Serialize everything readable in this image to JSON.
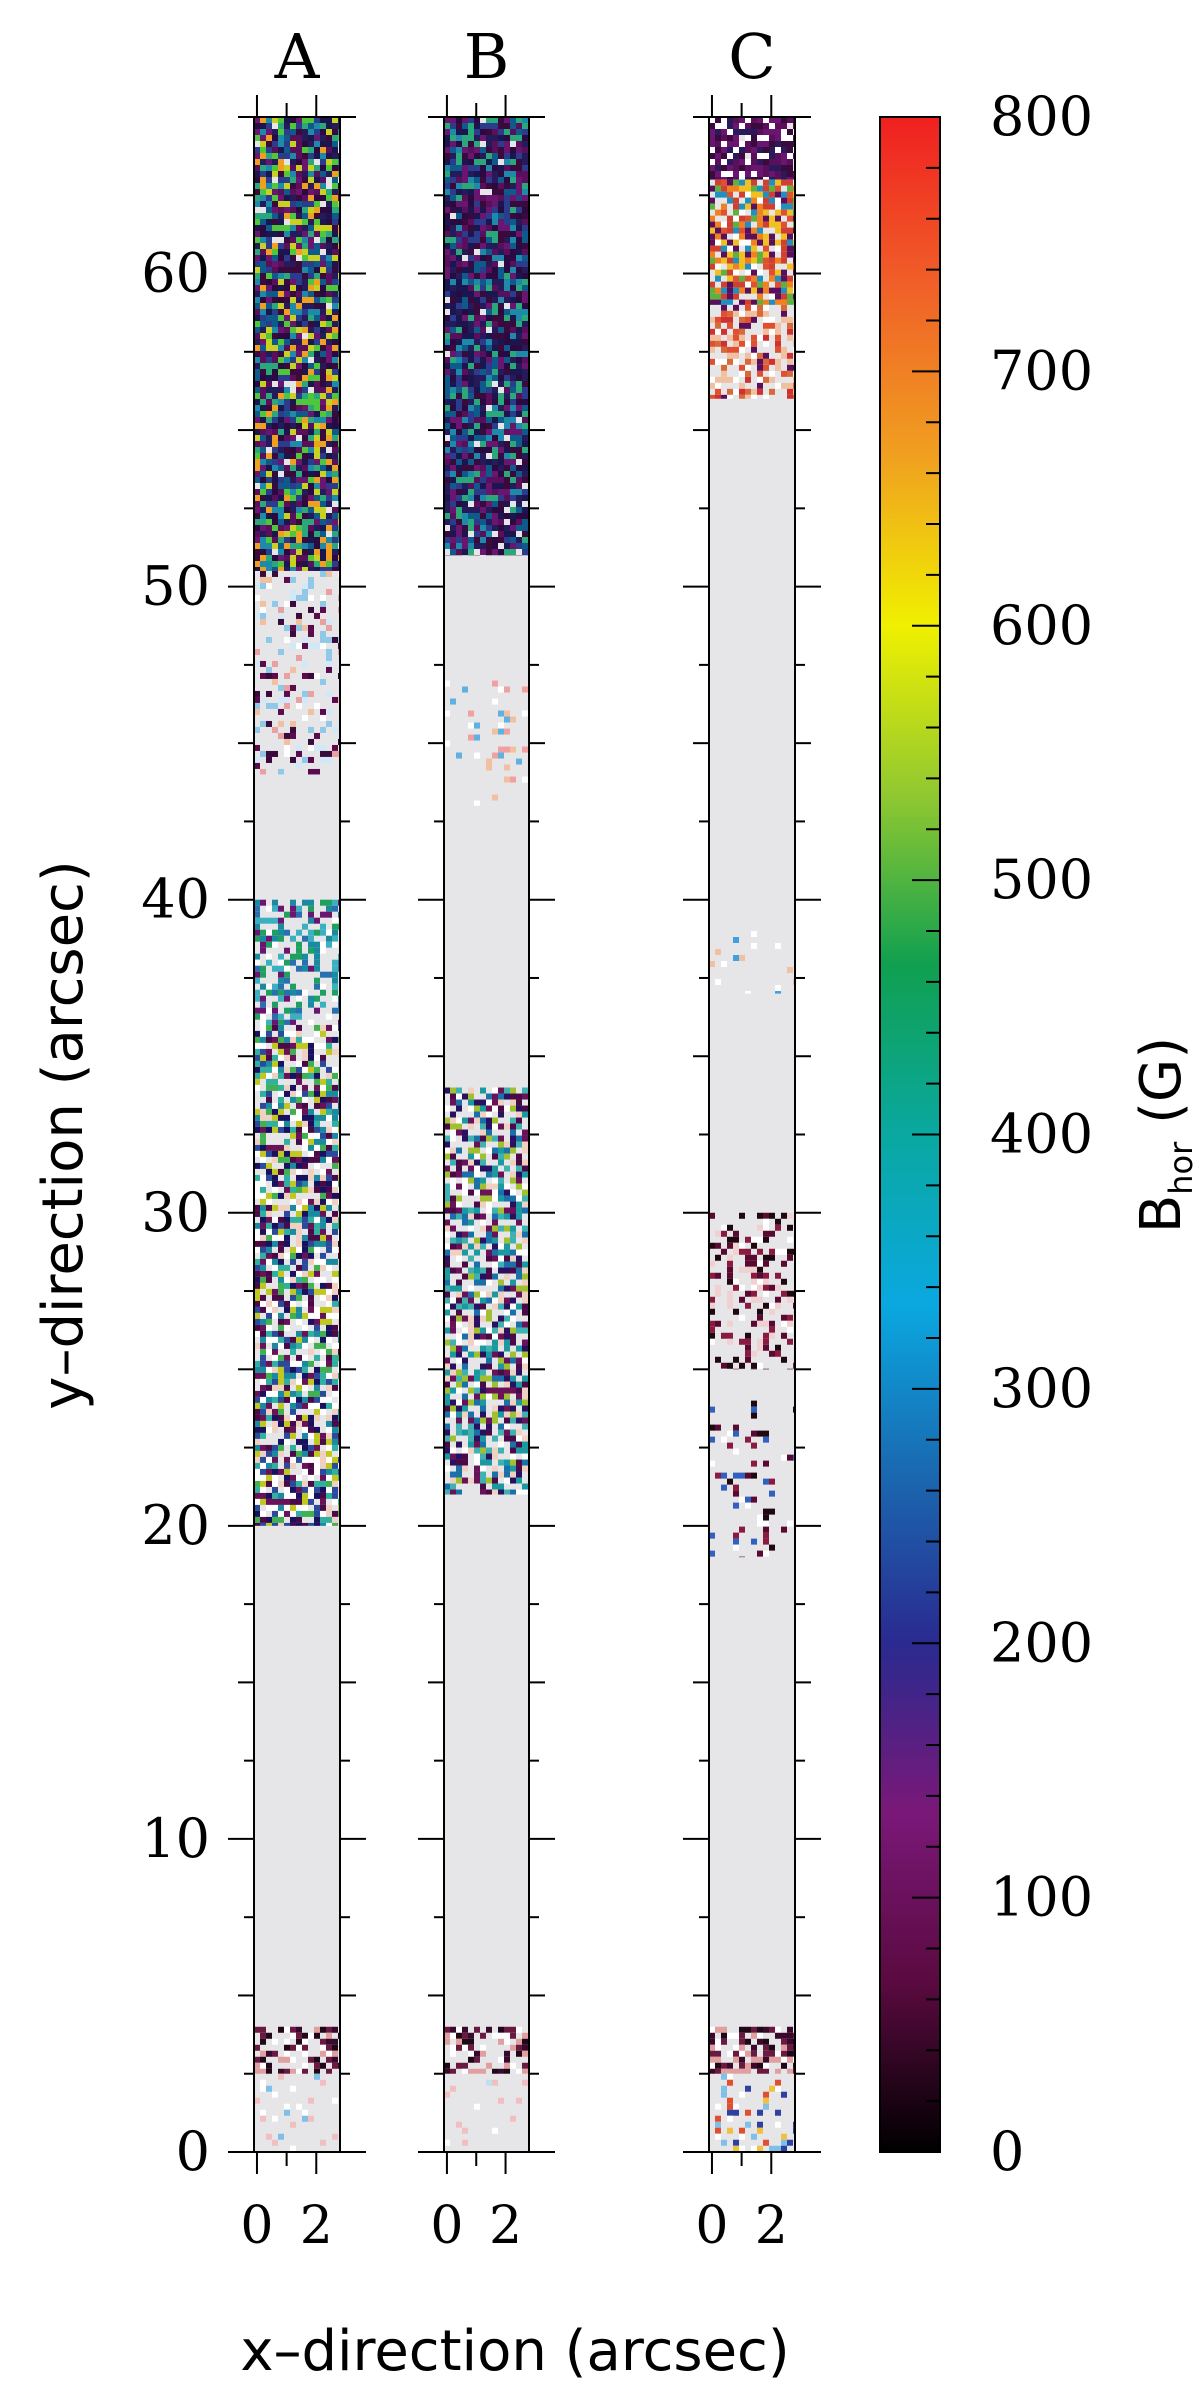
{
  "chart_data": {
    "type": "heatmap",
    "panels": [
      {
        "label": "A",
        "xrange": [
          -0.1,
          2.8
        ],
        "xticks": [
          0,
          2
        ],
        "yrange": [
          0,
          65
        ],
        "regions": [
          {
            "y": [
              50.5,
              65
            ],
            "density": 0.96,
            "pal": [
              "#3a0a3c",
              "#5a0f5c",
              "#2a0a40",
              "#6a1670",
              "#1b1550",
              "#251b5a",
              "#2b3c8c",
              "#0e5a8a",
              "#1c8aa8",
              "#2aa87a",
              "#4ec83a",
              "#c8d020",
              "#f0a020"
            ]
          },
          {
            "y": [
              44,
              50.5
            ],
            "density": 0.35,
            "pal": [
              "#ffffff",
              "#f0c0a0",
              "#d0e8f8",
              "#3a0a3c",
              "#5b0a4c",
              "#e8a0a0",
              "#90c8e8"
            ]
          },
          {
            "y": [
              36,
              40
            ],
            "density": 0.55,
            "pal": [
              "#1a8aa0",
              "#3ab0c0",
              "#2a70b0",
              "#ffffff",
              "#6a1670",
              "#20a060"
            ]
          },
          {
            "y": [
              20,
              36
            ],
            "density": 0.8,
            "pal": [
              "#4a0a48",
              "#6a1258",
              "#1a1060",
              "#2a4a9c",
              "#1a8aa0",
              "#30b0a0",
              "#40b050",
              "#c0c820",
              "#ffffff",
              "#f0d0c0",
              "#ffffff"
            ]
          },
          {
            "y": [
              2.5,
              4
            ],
            "density": 0.65,
            "pal": [
              "#3a0a2c",
              "#6a1a40",
              "#ffffff",
              "#e0a0a0",
              "#200818"
            ]
          },
          {
            "y": [
              0,
              2.5
            ],
            "density": 0.08,
            "pal": [
              "#ffffff",
              "#80c0e8",
              "#f0c0c0"
            ]
          }
        ]
      },
      {
        "label": "B",
        "xrange": [
          -0.1,
          2.8
        ],
        "xticks": [
          0,
          2
        ],
        "yrange": [
          0,
          65
        ],
        "regions": [
          {
            "y": [
              51,
              65
            ],
            "density": 0.97,
            "pal": [
              "#3a0a3c",
              "#5a0f5c",
              "#2a0a40",
              "#6a1670",
              "#1b1550",
              "#251b5a",
              "#2b3c8c",
              "#0e5a8a",
              "#1c8aa8",
              "#2aa87a"
            ]
          },
          {
            "y": [
              43,
              47
            ],
            "density": 0.12,
            "pal": [
              "#ffffff",
              "#f0c0a0",
              "#60b0e0",
              "#f0a0a0"
            ]
          },
          {
            "y": [
              21,
              34
            ],
            "density": 0.72,
            "pal": [
              "#4a0a48",
              "#6a1258",
              "#2a1060",
              "#1a70a8",
              "#1a9aa0",
              "#40b0b0",
              "#a0c030",
              "#ffffff",
              "#f0d0c0"
            ]
          },
          {
            "y": [
              2.5,
              4
            ],
            "density": 0.6,
            "pal": [
              "#3a0a2c",
              "#6a1a40",
              "#ffffff",
              "#e0a0a0",
              "#200818"
            ]
          },
          {
            "y": [
              0,
              2.5
            ],
            "density": 0.07,
            "pal": [
              "#ffffff",
              "#f0c0c0",
              "#c0e0f0"
            ]
          }
        ]
      },
      {
        "label": "C",
        "xrange": [
          -0.1,
          2.8
        ],
        "xticks": [
          0,
          2
        ],
        "yrange": [
          0,
          65
        ],
        "regions": [
          {
            "y": [
              63,
              65
            ],
            "density": 0.97,
            "pal": [
              "#3a0a3c",
              "#5a0f5c",
              "#6a1670",
              "#2a1a5a",
              "#ffffff"
            ]
          },
          {
            "y": [
              59,
              63
            ],
            "density": 0.85,
            "pal": [
              "#d04030",
              "#f08020",
              "#f0c020",
              "#60b040",
              "#2090c0",
              "#5a0f5c",
              "#ffffff",
              "#e05030"
            ]
          },
          {
            "y": [
              56,
              59
            ],
            "density": 0.6,
            "pal": [
              "#d03030",
              "#e05030",
              "#ffffff",
              "#f0c0a0",
              "#5a0f5c",
              "#d86a3a"
            ]
          },
          {
            "y": [
              37,
              39
            ],
            "density": 0.06,
            "pal": [
              "#ffffff",
              "#40a0e0",
              "#f0c0a0"
            ]
          },
          {
            "y": [
              25,
              30
            ],
            "density": 0.45,
            "pal": [
              "#200810",
              "#5a0a30",
              "#8a1a40",
              "#ffffff",
              "#f0d0d0"
            ]
          },
          {
            "y": [
              19,
              24
            ],
            "density": 0.14,
            "pal": [
              "#5a0a30",
              "#8a1a40",
              "#ffffff",
              "#200810",
              "#3060c0"
            ]
          },
          {
            "y": [
              2.5,
              4
            ],
            "density": 0.75,
            "pal": [
              "#3a0a2c",
              "#6a1a40",
              "#200818",
              "#ffffff",
              "#e0a0a0"
            ]
          },
          {
            "y": [
              0,
              2.5
            ],
            "density": 0.2,
            "pal": [
              "#ffffff",
              "#3040a0",
              "#f0c040",
              "#e05030",
              "#80c0e8"
            ]
          }
        ]
      }
    ],
    "yaxis": {
      "label": "y–direction   (arcsec)",
      "range": [
        0,
        65
      ],
      "ticks": [
        0,
        10,
        20,
        30,
        40,
        50,
        60
      ]
    },
    "xaxis": {
      "label": "x–direction   (arcsec)",
      "ticks": [
        0,
        2
      ]
    },
    "colorbar": {
      "label_main": "B",
      "label_sub": "hor",
      "label_unit": "(G)",
      "range": [
        0,
        800
      ],
      "ticks": [
        0,
        100,
        200,
        300,
        400,
        500,
        600,
        700,
        800
      ],
      "stops": [
        "#000000",
        "#5a0a40",
        "#7a1878",
        "#2a2a90",
        "#1a68b0",
        "#0aa8e0",
        "#0aa8a0",
        "#10a050",
        "#90c830",
        "#f0f000",
        "#f0a020",
        "#f06028",
        "#f02020"
      ]
    },
    "background_color": "#e6e6e8"
  }
}
